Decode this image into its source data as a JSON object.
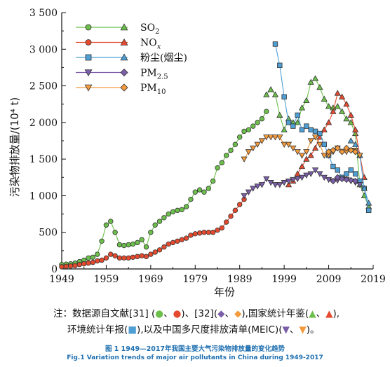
{
  "chart_data": {
    "type": "line",
    "ylabel": "污染物排放量/(10⁴ t)",
    "xlabel": "年份",
    "xlim": [
      1949,
      2019
    ],
    "ylim": [
      0,
      3500
    ],
    "xticks": [
      1949,
      1959,
      1969,
      1979,
      1989,
      1999,
      2009,
      2019
    ],
    "yticks": [
      0,
      500,
      1000,
      1500,
      2000,
      2500,
      3000,
      3500
    ],
    "ytick_labels": [
      "0",
      "500",
      "1 000",
      "1 500",
      "2 000",
      "2 500",
      "3 000",
      "3 500"
    ],
    "legend_position": "top-left",
    "series": [
      {
        "name": "SO2",
        "marker": "circle",
        "color": "#6cbf4b",
        "x": [
          1949,
          1950,
          1951,
          1952,
          1953,
          1954,
          1955,
          1956,
          1957,
          1958,
          1959,
          1960,
          1961,
          1962,
          1963,
          1964,
          1965,
          1966,
          1967,
          1968,
          1969,
          1970,
          1971,
          1972,
          1973,
          1974,
          1975,
          1976,
          1977,
          1978,
          1979,
          1980,
          1981,
          1982,
          1983,
          1984,
          1985,
          1986,
          1987,
          1988,
          1989,
          1990,
          1991,
          1992,
          1993,
          1994,
          1995
        ],
        "values": [
          60,
          65,
          70,
          80,
          100,
          120,
          150,
          160,
          200,
          380,
          600,
          650,
          500,
          330,
          320,
          330,
          340,
          360,
          400,
          300,
          500,
          600,
          650,
          700,
          750,
          780,
          800,
          810,
          850,
          950,
          1050,
          1080,
          1050,
          1100,
          1200,
          1380,
          1450,
          1550,
          1620,
          1700,
          1800,
          1880,
          1900,
          1950,
          2000,
          2050,
          2150
        ]
      },
      {
        "name": "SO2",
        "marker": "triangle",
        "color": "#6cbf4b",
        "x": [
          1995,
          1996,
          1997,
          1998,
          1999,
          2000,
          2001,
          2002,
          2003,
          2004,
          2005,
          2006,
          2007,
          2008,
          2009,
          2010,
          2011,
          2012,
          2013,
          2014,
          2015,
          2016,
          2017,
          2018
        ],
        "values": [
          2380,
          2450,
          2380,
          2100,
          1900,
          2050,
          2000,
          2000,
          2200,
          2300,
          2550,
          2600,
          2480,
          2320,
          2220,
          2200,
          2220,
          2150,
          2050,
          2000,
          1850,
          1150,
          1000,
          850
        ]
      },
      {
        "name": "NOx",
        "marker": "circle",
        "color": "#e64a2e",
        "x": [
          1949,
          1950,
          1951,
          1952,
          1953,
          1954,
          1955,
          1956,
          1957,
          1958,
          1959,
          1960,
          1961,
          1962,
          1963,
          1964,
          1965,
          1966,
          1967,
          1968,
          1969,
          1970,
          1971,
          1972,
          1973,
          1974,
          1975,
          1976,
          1977,
          1978,
          1979,
          1980,
          1981,
          1982,
          1983,
          1984,
          1985,
          1986,
          1987,
          1988,
          1989,
          1990
        ],
        "values": [
          30,
          35,
          40,
          45,
          60,
          70,
          80,
          90,
          110,
          120,
          150,
          200,
          180,
          150,
          150,
          150,
          160,
          170,
          180,
          170,
          200,
          230,
          260,
          300,
          340,
          360,
          380,
          400,
          420,
          460,
          480,
          490,
          500,
          500,
          500,
          530,
          560,
          640,
          720,
          800,
          880,
          950
        ]
      },
      {
        "name": "NOx",
        "marker": "triangle",
        "color": "#e64a2e",
        "x": [
          2000,
          2001,
          2002,
          2003,
          2004,
          2005,
          2006,
          2007,
          2008,
          2009,
          2010,
          2011,
          2012,
          2013,
          2014,
          2015,
          2016,
          2017
        ],
        "values": [
          1150,
          1200,
          1300,
          1400,
          1500,
          1550,
          1650,
          1800,
          1900,
          2000,
          2150,
          2400,
          2350,
          2250,
          2100,
          1900,
          1550,
          1250
        ]
      },
      {
        "name": "粉尘(烟尘)",
        "marker": "square",
        "color": "#4f9fd4",
        "x": [
          1997,
          1998,
          1999,
          2000,
          2001,
          2002,
          2003,
          2004,
          2005,
          2006,
          2007,
          2008,
          2009,
          2010,
          2011,
          2012,
          2013,
          2014,
          2015,
          2016,
          2017,
          2018
        ],
        "values": [
          3070,
          2780,
          2350,
          2000,
          1950,
          2100,
          1900,
          1950,
          1900,
          1880,
          1850,
          1700,
          1550,
          1400,
          1350,
          1250,
          1300,
          1350,
          1300,
          1200,
          1100,
          800
        ]
      },
      {
        "name": "粉尘(烟尘)",
        "marker": "triangle",
        "color": "#4f9fd4",
        "x": [
          2014,
          2015,
          2016,
          2017,
          2018
        ],
        "values": [
          1750,
          1700,
          1550,
          1100,
          900
        ]
      },
      {
        "name": "PM2.5",
        "marker": "triangle-down",
        "color": "#7b5ea8",
        "x": [
          1990,
          1991,
          1992,
          1993,
          1994,
          1995,
          1996,
          1997,
          1998,
          1999,
          2000,
          2001,
          2002,
          2003,
          2004,
          2005,
          2006,
          2007,
          2008,
          2009,
          2010,
          2011,
          2012,
          2013,
          2014,
          2015,
          2016
        ],
        "values": [
          1000,
          1050,
          1100,
          1130,
          1150,
          1230,
          1180,
          1150,
          1150,
          1180,
          1200,
          1220,
          1230,
          1250,
          1280,
          1300,
          1350,
          1300,
          1250,
          1220,
          1200,
          1210,
          1230,
          1220,
          1200,
          1180,
          1150
        ]
      },
      {
        "name": "PM2.5",
        "marker": "diamond",
        "color": "#7b5ea8",
        "x": [
          2010,
          2011,
          2012,
          2013,
          2014,
          2015
        ],
        "values": [
          1200,
          1250,
          1230,
          1220,
          1210,
          1200
        ]
      },
      {
        "name": "PM10",
        "marker": "triangle-down",
        "color": "#f39a3c",
        "x": [
          1990,
          1991,
          1992,
          1993,
          1994,
          1995,
          1996,
          1997,
          1998,
          1999,
          2000,
          2001,
          2002,
          2003,
          2004,
          2005,
          2006,
          2007,
          2008,
          2009,
          2010,
          2011,
          2012,
          2013,
          2014,
          2015,
          2016
        ],
        "values": [
          1500,
          1600,
          1650,
          1700,
          1750,
          1800,
          1800,
          1800,
          1800,
          1700,
          1700,
          1650,
          1600,
          1550,
          1600,
          1750,
          1800,
          1700,
          1550,
          1550,
          1600,
          1650,
          1600,
          1600,
          1620,
          1620,
          1550
        ]
      },
      {
        "name": "PM10",
        "marker": "diamond",
        "color": "#f39a3c",
        "x": [
          2009,
          2010,
          2011,
          2012,
          2013,
          2014,
          2015
        ],
        "values": [
          1600,
          1620,
          1650,
          1600,
          1650,
          1620,
          1600
        ]
      }
    ],
    "legend": [
      {
        "label": "SO",
        "sub": "2",
        "color": "#6cbf4b",
        "m1": "circle",
        "m2": "triangle"
      },
      {
        "label": "NO",
        "sub": "x",
        "color": "#e64a2e",
        "m1": "circle",
        "m2": "triangle"
      },
      {
        "label": "粉尘(烟尘)",
        "sub": "",
        "color": "#4f9fd4",
        "m1": "square",
        "m2": "triangle"
      },
      {
        "label": "PM",
        "sub": "2.5",
        "color": "#7b5ea8",
        "m1": "triangle-down",
        "m2": "diamond"
      },
      {
        "label": "PM",
        "sub": "10",
        "color": "#f39a3c",
        "m1": "triangle-down",
        "m2": "diamond"
      }
    ]
  },
  "note": {
    "line1_prefix": "注：数据源自文献[31] (",
    "line1_mid1": ")、[32](",
    "line1_mid2": "),国家统计年鉴(",
    "line1_suffix": "),",
    "line2_prefix": "环境统计年报(",
    "line2_mid": "),以及中国多尺度排放清单(MEIC)(",
    "line2_suffix": ")。",
    "sep": "、"
  },
  "caption": {
    "cn": "图 1  1949—2017年我国主要大气污染物排放量的变化趋势",
    "en": "Fig.1  Variation trends of major air pollutants in China during 1949-2017"
  }
}
